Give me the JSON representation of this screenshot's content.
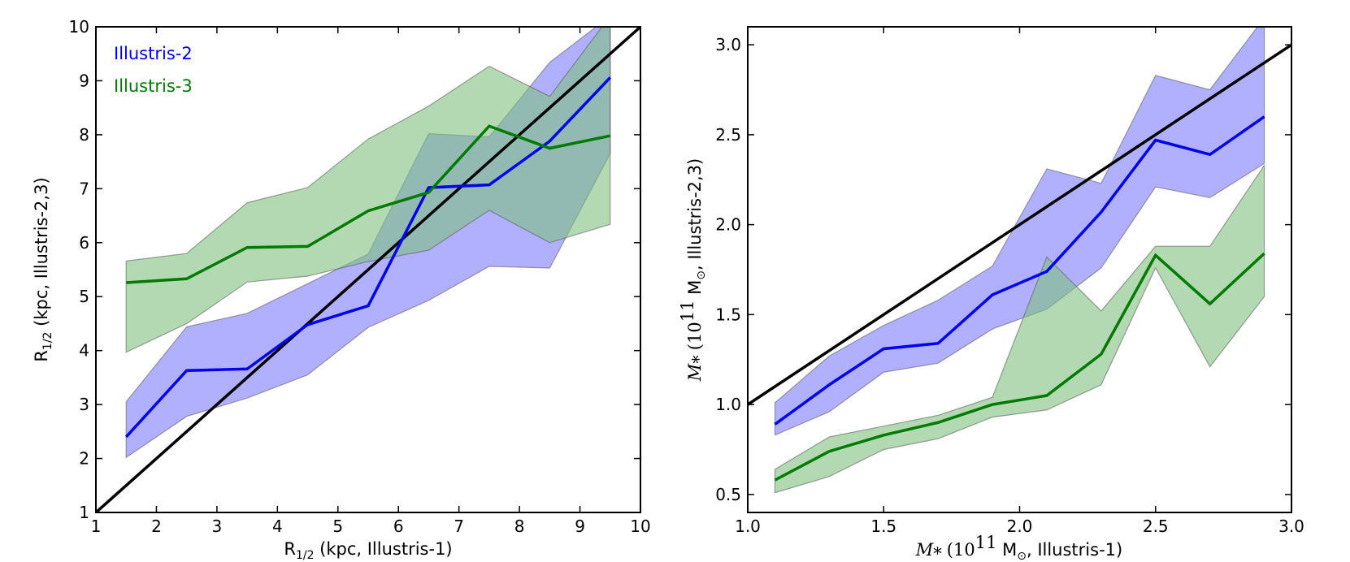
{
  "colors": {
    "illustris2": "#0000ee",
    "illustris2_fill": "#7b7bff",
    "illustris3": "#007a00",
    "illustris3_fill": "#7fbf7f",
    "one_to_one": "#000000"
  },
  "chart_data": [
    {
      "type": "line",
      "xlim": [
        1,
        10
      ],
      "ylim": [
        1,
        10
      ],
      "xticks": [
        1,
        2,
        3,
        4,
        5,
        6,
        7,
        8,
        9,
        10
      ],
      "yticks": [
        1,
        2,
        3,
        4,
        5,
        6,
        7,
        8,
        9,
        10
      ],
      "xtick_labels": [
        "1",
        "2",
        "3",
        "4",
        "5",
        "6",
        "7",
        "8",
        "9",
        "10"
      ],
      "ytick_labels": [
        "1",
        "2",
        "3",
        "4",
        "5",
        "6",
        "7",
        "8",
        "9",
        "10"
      ],
      "xlabel": {
        "main": "R",
        "sub": "1/2",
        "rest": " (kpc, Illustris-1)"
      },
      "ylabel": {
        "main": "R",
        "sub": "1/2",
        "rest": " (kpc, Illustris-2,3)"
      },
      "legend": {
        "placement": "top-left",
        "entries": [
          "Illustris-2",
          "Illustris-3"
        ]
      },
      "one_to_one": [
        [
          1,
          1
        ],
        [
          10,
          10
        ]
      ],
      "x": [
        1.5,
        2.5,
        3.5,
        4.5,
        5.5,
        6.5,
        7.5,
        8.5,
        9.5
      ],
      "series": [
        {
          "name": "Illustris-2",
          "median": [
            2.4,
            3.63,
            3.66,
            4.48,
            4.83,
            7.02,
            7.07,
            7.88,
            9.06
          ],
          "lower": [
            2.02,
            2.78,
            3.12,
            3.55,
            4.43,
            4.93,
            5.56,
            5.53,
            7.65
          ],
          "upper": [
            3.05,
            4.44,
            4.69,
            5.24,
            5.79,
            8.02,
            7.96,
            9.34,
            10.2
          ]
        },
        {
          "name": "Illustris-3",
          "median": [
            5.26,
            5.33,
            5.91,
            5.93,
            6.59,
            6.93,
            8.16,
            7.75,
            7.98
          ],
          "lower": [
            3.97,
            4.5,
            5.27,
            5.38,
            5.65,
            5.86,
            6.6,
            6.0,
            6.34
          ],
          "upper": [
            5.66,
            5.8,
            6.74,
            7.02,
            7.92,
            8.53,
            9.27,
            8.71,
            10.2
          ]
        }
      ]
    },
    {
      "type": "line",
      "xlim": [
        1.0,
        3.0
      ],
      "ylim": [
        0.4,
        3.1
      ],
      "xticks": [
        1.0,
        1.5,
        2.0,
        2.5,
        3.0
      ],
      "yticks": [
        0.5,
        1.0,
        1.5,
        2.0,
        2.5,
        3.0
      ],
      "xtick_labels": [
        "1.0",
        "1.5",
        "2.0",
        "2.5",
        "3.0"
      ],
      "ytick_labels": [
        "0.5",
        "1.0",
        "1.5",
        "2.0",
        "2.5",
        "3.0"
      ],
      "xlabel": {
        "sym": "M",
        "symsub": "*",
        "ten": "(10",
        "exp": "11",
        "unit": " M",
        "sun": "⊙",
        "rest": ", Illustris-1)"
      },
      "ylabel": {
        "sym": "M",
        "symsub": "*",
        "ten": "(10",
        "exp": "11",
        "unit": " M",
        "sun": "⊙",
        "rest": ", Illustris-2,3)"
      },
      "one_to_one": [
        [
          1.0,
          1.0
        ],
        [
          3.0,
          3.0
        ]
      ],
      "x": [
        1.1,
        1.3,
        1.5,
        1.7,
        1.9,
        2.1,
        2.3,
        2.5,
        2.7,
        2.9
      ],
      "series": [
        {
          "name": "Illustris-2",
          "median": [
            0.89,
            1.11,
            1.31,
            1.34,
            1.61,
            1.74,
            2.07,
            2.47,
            2.39,
            2.6
          ],
          "lower": [
            0.83,
            0.96,
            1.18,
            1.23,
            1.42,
            1.53,
            1.76,
            2.21,
            2.15,
            2.34
          ],
          "upper": [
            1.01,
            1.27,
            1.44,
            1.58,
            1.77,
            2.31,
            2.23,
            2.83,
            2.75,
            3.15
          ]
        },
        {
          "name": "Illustris-3",
          "median": [
            0.58,
            0.74,
            0.83,
            0.9,
            1.0,
            1.05,
            1.28,
            1.83,
            1.56,
            1.84
          ],
          "lower": [
            0.51,
            0.6,
            0.75,
            0.81,
            0.93,
            0.97,
            1.11,
            1.76,
            1.21,
            1.6
          ],
          "upper": [
            0.64,
            0.82,
            0.88,
            0.94,
            1.04,
            1.82,
            1.52,
            1.88,
            1.88,
            2.33
          ]
        }
      ]
    }
  ]
}
